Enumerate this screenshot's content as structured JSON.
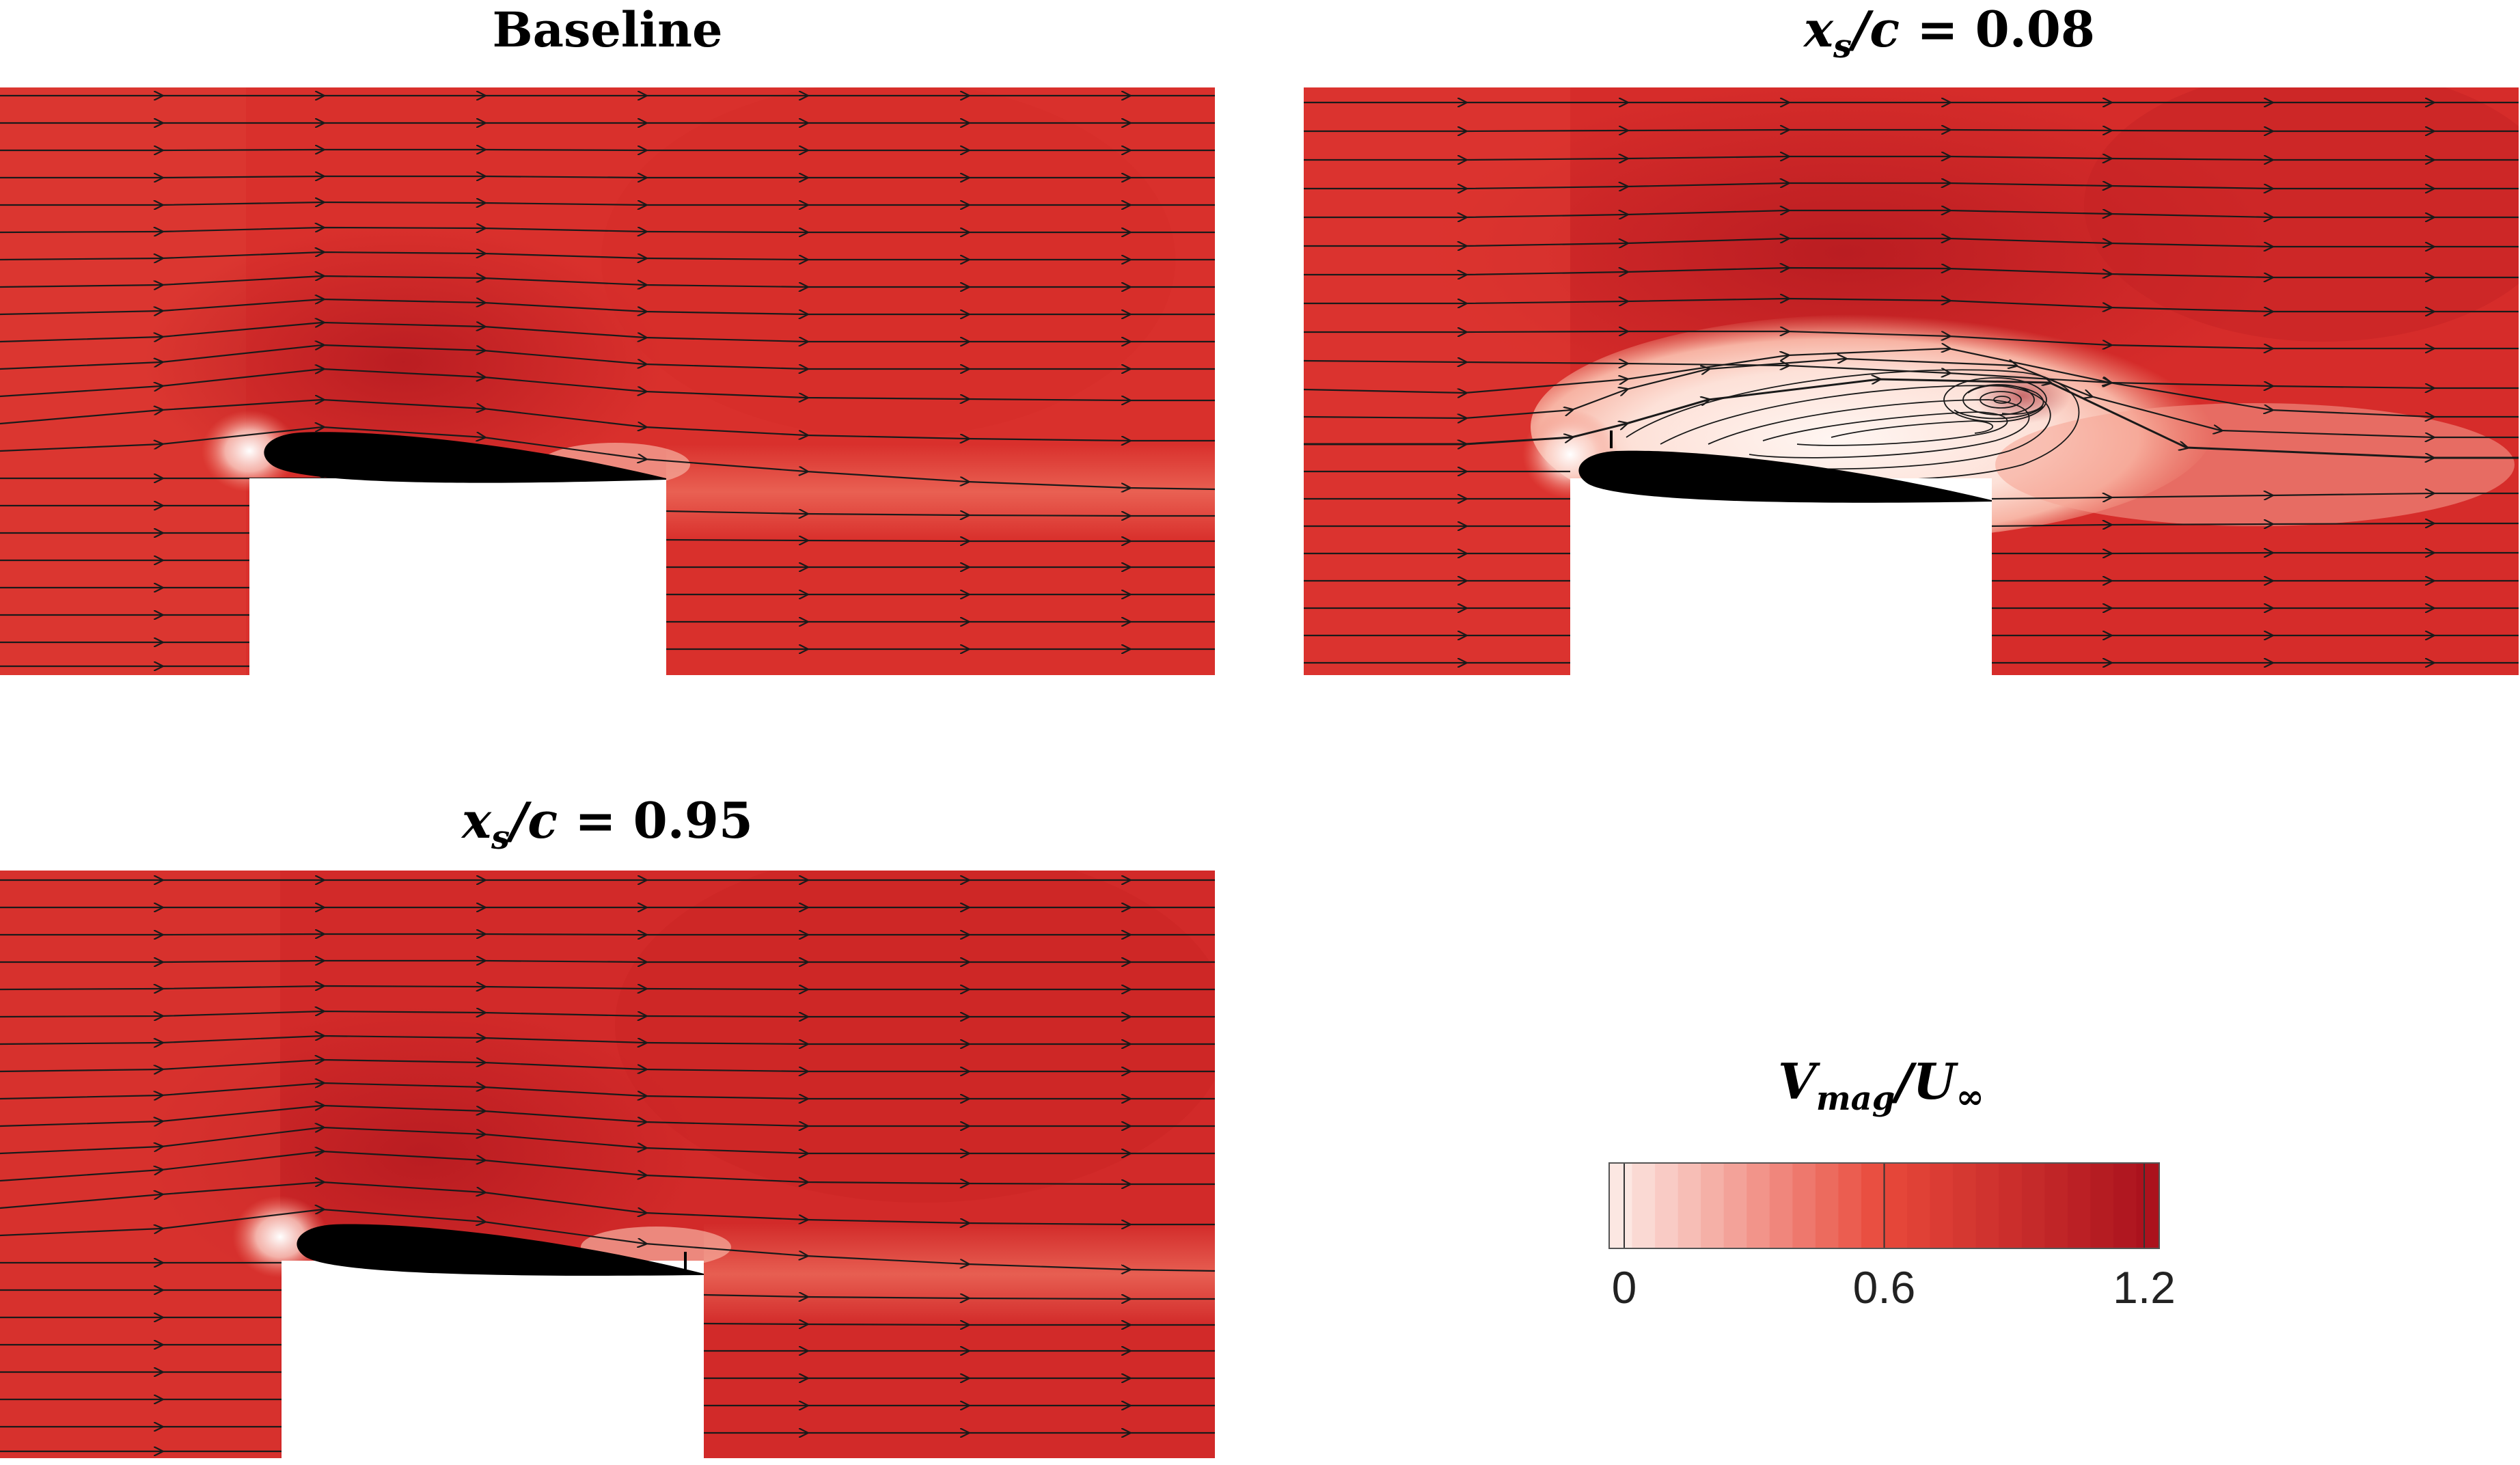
{
  "panels": [
    {
      "id": "baseline",
      "title": "Baseline",
      "title_style": "plain",
      "spoiler": false
    },
    {
      "id": "xs008",
      "title": {
        "prefix": "x",
        "sub": "s",
        "rest": "/c = ",
        "value": "0.08"
      },
      "title_style": "math",
      "spoiler": true,
      "separation": true
    },
    {
      "id": "xs095",
      "title": {
        "prefix": "x",
        "sub": "s",
        "rest": "/c = ",
        "value": "0.95"
      },
      "title_style": "math",
      "spoiler": true,
      "separation": false
    }
  ],
  "colorbar": {
    "title": {
      "main": "V",
      "sub": "mag",
      "rest": "/U",
      "sub2": "∞"
    },
    "ticks": [
      "0",
      "0.6",
      "1.2"
    ],
    "tick_values": [
      0,
      0.6,
      1.2
    ],
    "range": [
      0,
      1.2
    ],
    "levels": 24,
    "colors": {
      "low": "#fdeee9",
      "mid": "#e8483a",
      "high": "#a8101c"
    }
  },
  "colors": {
    "freestream": "#d9302c",
    "accelerated": "#be1f23",
    "wake": "#ea4f3f",
    "airfoil": "#000000",
    "streamline": "#1a1a1a"
  }
}
